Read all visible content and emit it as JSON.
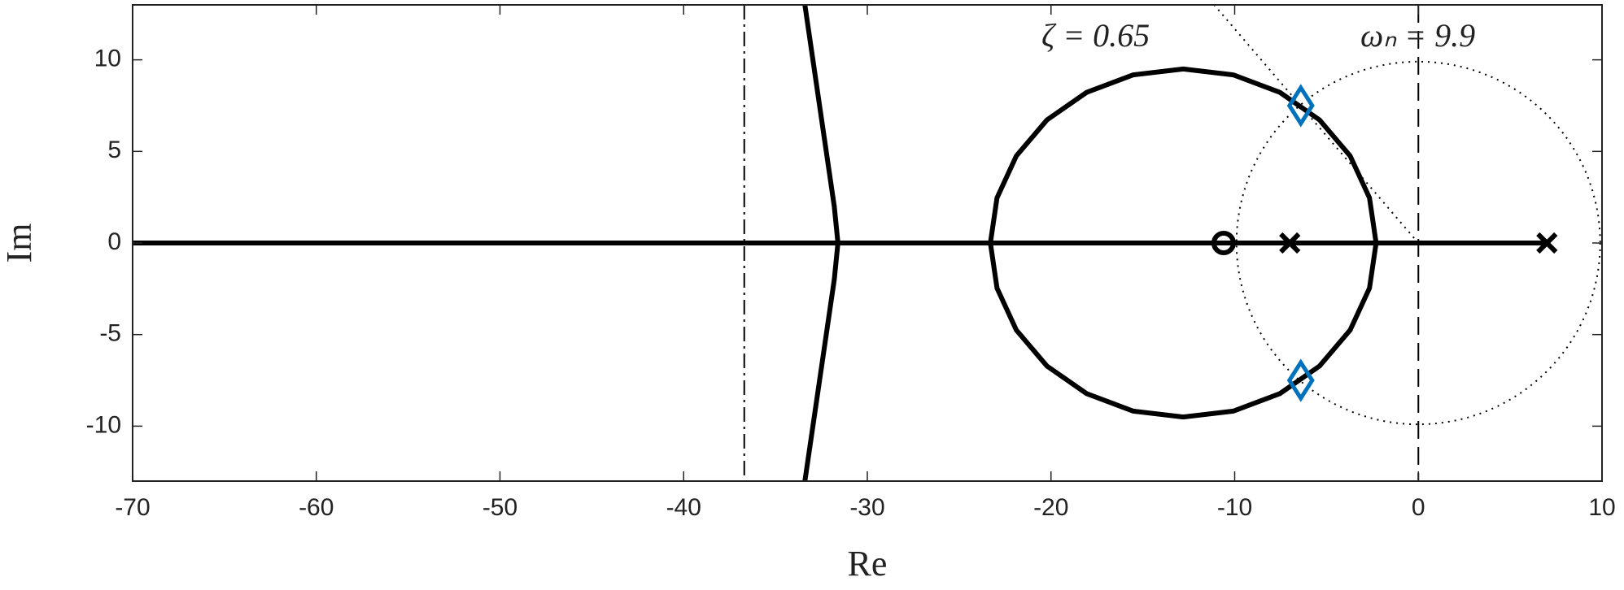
{
  "chart_data": {
    "type": "line",
    "xlabel": "Re",
    "ylabel": "Im",
    "xlim": [
      -70,
      10
    ],
    "ylim": [
      -13,
      13
    ],
    "xticks": [
      -70,
      -60,
      -50,
      -40,
      -30,
      -20,
      -10,
      0,
      10
    ],
    "yticks": [
      -10,
      -5,
      0,
      5,
      10
    ],
    "series": [
      {
        "color": "#000000",
        "x": [
          -70,
          7
        ],
        "y": [
          0,
          0
        ]
      },
      {
        "color": "#000000",
        "x": [
          -33.4,
          -31.8,
          -31.6,
          -31.8,
          -33.4
        ],
        "y": [
          13,
          2,
          0,
          -2,
          -13
        ]
      },
      {
        "color": "#000000",
        "x": [
          -2.3,
          -2.66,
          -3.71,
          -5.38,
          -7.55,
          -10.08,
          -12.8,
          -15.52,
          -18.05,
          -20.22,
          -21.89,
          -22.94,
          -23.3,
          -22.94,
          -21.89,
          -20.22,
          -18.05,
          -15.52,
          -12.8,
          -10.08,
          -7.55,
          -5.38,
          -3.71,
          -2.66,
          -2.3
        ],
        "y": [
          0,
          2.46,
          4.75,
          6.72,
          8.23,
          9.18,
          9.5,
          9.18,
          8.23,
          6.72,
          4.75,
          2.46,
          0,
          -2.46,
          -4.75,
          -6.72,
          -8.23,
          -9.18,
          -9.5,
          -9.18,
          -8.23,
          -6.72,
          -4.75,
          -2.46,
          0
        ]
      }
    ],
    "poles": {
      "color": "#000000",
      "x": [
        -7,
        7
      ],
      "y": [
        0,
        0
      ]
    },
    "zeros": {
      "color": "#000000",
      "x": [
        -10.6
      ],
      "y": [
        0
      ]
    },
    "selected": {
      "color": "#0072bd",
      "x": [
        -6.4,
        -6.4
      ],
      "y": [
        7.5,
        -7.5
      ]
    },
    "asymptote_center": -36.7,
    "zeta": 0.65,
    "wn": 9.9,
    "annotations": [
      "ζ = 0.65",
      "ωₙ = 9.9"
    ]
  }
}
